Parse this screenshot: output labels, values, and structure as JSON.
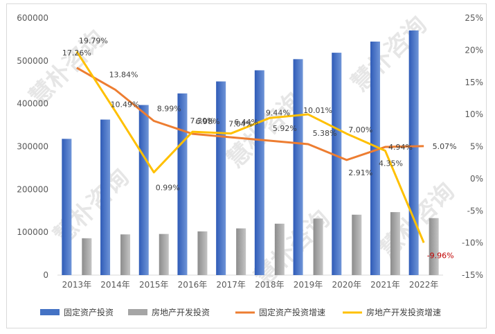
{
  "chart_data": {
    "type": "bar",
    "title": "",
    "xlabel": "",
    "ylabel": "",
    "categories": [
      "2013年",
      "2014年",
      "2015年",
      "2016年",
      "2017年",
      "2018年",
      "2019年",
      "2020年",
      "2021年",
      "2022年"
    ],
    "ylim": [
      0,
      600000
    ],
    "yticks": [
      "0",
      "100000",
      "200000",
      "300000",
      "400000",
      "500000",
      "600000"
    ],
    "y2lim": [
      -15,
      25
    ],
    "y2ticks": [
      "-15%",
      "-10%",
      "-5%",
      "0%",
      "5%",
      "10%",
      "15%",
      "20%",
      "25%"
    ],
    "legend_position": "bottom",
    "grid": false,
    "series": [
      {
        "name": "固定资产投资",
        "type": "bar",
        "axis": "left",
        "color": "#4472c4",
        "values": [
          318000,
          363000,
          397000,
          424000,
          452000,
          478000,
          504000,
          519000,
          545000,
          571000
        ]
      },
      {
        "name": "房地产开发投资",
        "type": "bar",
        "axis": "left",
        "color": "#a5a5a5",
        "values": [
          86000,
          95000,
          96000,
          102000,
          109000,
          120000,
          132000,
          141000,
          147000,
          133000
        ]
      },
      {
        "name": "固定资产投资增速",
        "type": "line",
        "axis": "right",
        "color": "#ed7d31",
        "values": [
          17.26,
          13.84,
          8.99,
          6.98,
          6.44,
          5.92,
          5.38,
          2.91,
          4.94,
          5.07
        ],
        "labels": [
          "17.26%",
          "13.84%",
          "8.99%",
          "6.98%",
          "6.44%",
          "5.92%",
          "5.38%",
          "2.91%",
          "4.94%",
          "5.07%"
        ]
      },
      {
        "name": "房地产开发投资增速",
        "type": "line",
        "axis": "right",
        "color": "#ffc000",
        "values": [
          19.79,
          10.49,
          0.99,
          7.3,
          7.04,
          9.44,
          10.01,
          7.0,
          4.35,
          -9.96
        ],
        "labels": [
          "19.79%",
          "10.49%",
          "0.99%",
          "7.30%",
          "7.04%",
          "9.44%",
          "10.01%",
          "7.00%",
          "4.35%",
          "-9.96%"
        ]
      }
    ]
  },
  "watermark": {
    "text": "慧朴咨询"
  }
}
